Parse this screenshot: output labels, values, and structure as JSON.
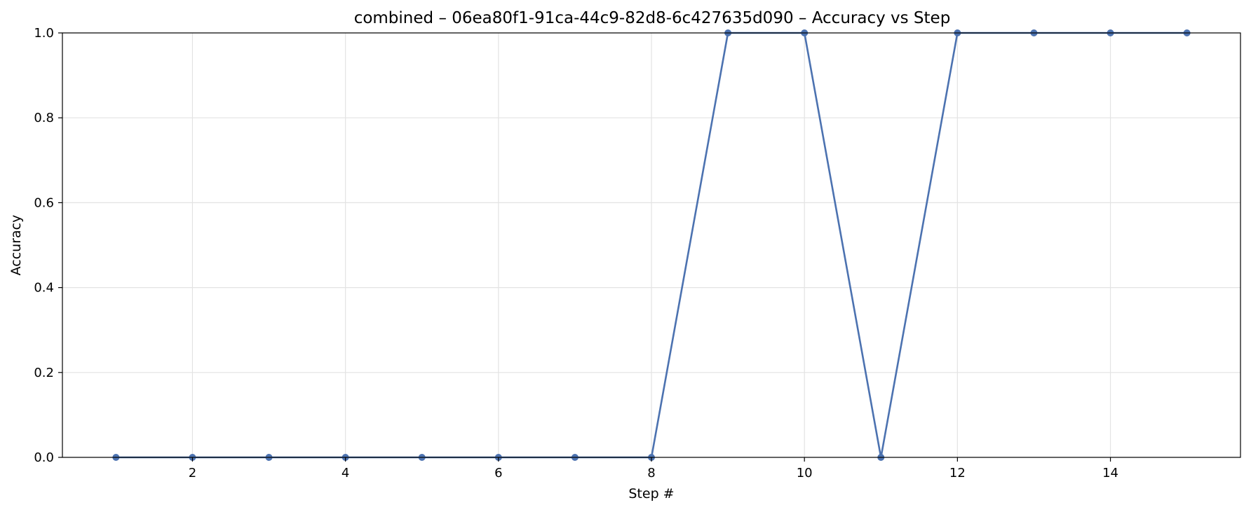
{
  "chart_data": {
    "type": "line",
    "title": "combined – 06ea80f1-91ca-44c9-82d8-6c427635d090 – Accuracy vs Step",
    "xlabel": "Step #",
    "ylabel": "Accuracy",
    "xlim": [
      0.3,
      15.7
    ],
    "ylim": [
      0,
      1
    ],
    "xticks": [
      2,
      4,
      6,
      8,
      10,
      12,
      14
    ],
    "yticks": [
      0.0,
      0.2,
      0.4,
      0.6,
      0.8,
      1.0
    ],
    "xtick_labels": [
      "2",
      "4",
      "6",
      "8",
      "10",
      "12",
      "14"
    ],
    "ytick_labels": [
      "0.0",
      "0.2",
      "0.4",
      "0.6",
      "0.8",
      "1.0"
    ],
    "grid": true,
    "series": [
      {
        "color": "#4c72b0",
        "x": [
          1,
          2,
          3,
          4,
          5,
          6,
          7,
          8,
          9,
          10,
          11,
          12,
          13,
          14,
          15
        ],
        "y": [
          0,
          0,
          0,
          0,
          0,
          0,
          0,
          0,
          1,
          1,
          0,
          1,
          1,
          1,
          1
        ]
      }
    ]
  }
}
